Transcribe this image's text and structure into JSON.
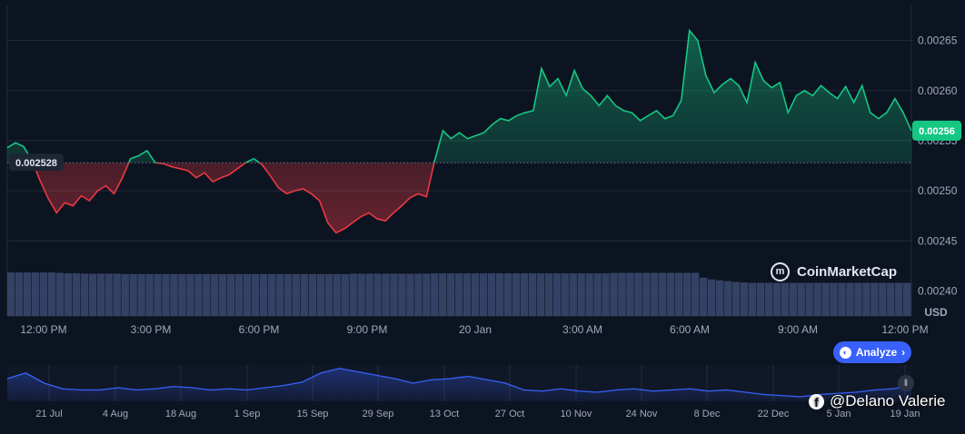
{
  "chart_data": {
    "type": "area",
    "baseline": 0.002528,
    "baseline_label": "0.002528",
    "current_price_label": "0.00256",
    "y_axis_unit": "USD",
    "ylim": [
      0.002375,
      0.002685
    ],
    "y_ticks": [
      "0.00265",
      "0.00260",
      "0.00255",
      "0.00250",
      "0.00245",
      "0.00240"
    ],
    "x_tick_labels": [
      "12:00 PM",
      "3:00 PM",
      "6:00 PM",
      "9:00 PM",
      "20 Jan",
      "3:00 AM",
      "6:00 AM",
      "9:00 AM",
      "12:00 PM"
    ],
    "price_series": {
      "x_start": 0,
      "x_step": 0.25,
      "unit": "hours from start of window",
      "values": [
        0.002543,
        0.002548,
        0.002544,
        0.00253,
        0.00251,
        0.002492,
        0.002478,
        0.002488,
        0.002485,
        0.002495,
        0.00249,
        0.0025,
        0.002505,
        0.002497,
        0.002513,
        0.002532,
        0.002535,
        0.00254,
        0.002528,
        0.002527,
        0.002524,
        0.002522,
        0.00252,
        0.002513,
        0.002518,
        0.002509,
        0.002513,
        0.002516,
        0.002522,
        0.002528,
        0.002532,
        0.002526,
        0.002515,
        0.002503,
        0.002497,
        0.0025,
        0.002502,
        0.002497,
        0.00249,
        0.002468,
        0.002458,
        0.002462,
        0.002468,
        0.002474,
        0.002478,
        0.002472,
        0.00247,
        0.002478,
        0.002485,
        0.002493,
        0.002497,
        0.002494,
        0.00253,
        0.00256,
        0.002552,
        0.002558,
        0.002552,
        0.002555,
        0.002558,
        0.002566,
        0.002572,
        0.00257,
        0.002575,
        0.002578,
        0.00258,
        0.002622,
        0.002604,
        0.002612,
        0.002595,
        0.00262,
        0.002602,
        0.002595,
        0.002585,
        0.002595,
        0.002585,
        0.00258,
        0.002578,
        0.00257,
        0.002575,
        0.00258,
        0.002572,
        0.002575,
        0.00259,
        0.00266,
        0.00265,
        0.002615,
        0.002598,
        0.002606,
        0.002612,
        0.002605,
        0.002588,
        0.002628,
        0.00261,
        0.002603,
        0.002608,
        0.002578,
        0.002595,
        0.0026,
        0.002595,
        0.002605,
        0.002598,
        0.002592,
        0.002604,
        0.002588,
        0.002605,
        0.002578,
        0.002572,
        0.002578,
        0.002592,
        0.002578,
        0.00256
      ]
    },
    "volume_series": {
      "unit": "relative",
      "values": [
        100,
        100,
        100,
        100,
        100,
        100,
        99,
        98,
        98,
        97,
        97,
        97,
        97,
        97,
        96,
        96,
        96,
        96,
        96,
        96,
        96,
        96,
        96,
        96,
        96,
        96,
        96,
        96,
        96,
        96,
        96,
        96,
        96,
        96,
        96,
        96,
        96,
        96,
        96,
        96,
        96,
        96,
        97,
        97,
        97,
        97,
        97,
        97,
        97,
        97,
        97,
        97,
        98,
        98,
        98,
        98,
        98,
        98,
        98,
        98,
        98,
        98,
        98,
        98,
        98,
        98,
        98,
        98,
        98,
        98,
        98,
        98,
        98,
        98,
        99,
        99,
        99,
        99,
        99,
        99,
        99,
        99,
        99,
        99,
        99,
        88,
        84,
        82,
        80,
        78,
        77,
        76,
        76,
        76,
        76,
        76,
        76,
        76,
        76,
        76,
        76,
        76,
        76,
        76,
        76,
        76,
        76,
        76,
        76,
        76,
        76
      ]
    },
    "navigator": {
      "x_tick_labels": [
        "21 Jul",
        "4 Aug",
        "18 Aug",
        "1 Sep",
        "15 Sep",
        "29 Sep",
        "13 Oct",
        "27 Oct",
        "10 Nov",
        "24 Nov",
        "8 Dec",
        "22 Dec",
        "5 Jan",
        "19 Jan"
      ],
      "values": [
        0.0025,
        0.00275,
        0.0023,
        0.00205,
        0.002,
        0.002,
        0.0021,
        0.002,
        0.00205,
        0.00215,
        0.0021,
        0.002,
        0.00205,
        0.002,
        0.0021,
        0.0022,
        0.00235,
        0.00275,
        0.00295,
        0.0028,
        0.00265,
        0.0025,
        0.0023,
        0.00245,
        0.0025,
        0.0026,
        0.00245,
        0.0023,
        0.002,
        0.00195,
        0.00205,
        0.00195,
        0.0019,
        0.002,
        0.00205,
        0.00195,
        0.002,
        0.00205,
        0.00195,
        0.002,
        0.0019,
        0.0018,
        0.00175,
        0.0017,
        0.0018,
        0.00185,
        0.0019,
        0.002,
        0.00205,
        0.0022
      ]
    },
    "colors": {
      "up": "#16c784",
      "down": "#ea3943",
      "volume": "#3b4a70",
      "navigator_line": "#3861fb",
      "baseline": "#6b7383"
    }
  },
  "brand": {
    "logo_label": "CoinMarketCap"
  },
  "analyze": {
    "label": "Analyze"
  },
  "watermark": {
    "handle": "@Delano Valerie"
  }
}
